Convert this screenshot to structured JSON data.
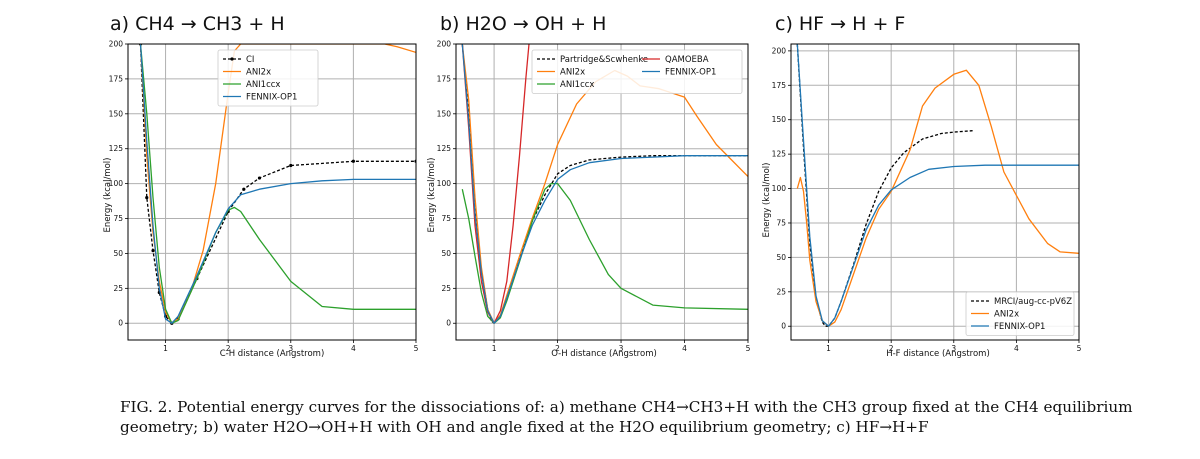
{
  "caption": {
    "label": "FIG. 2.",
    "text": "Potential energy curves for the dissociations of: a) methane CH4→CH3+H with the CH3 group fixed at the CH4 equilibrium geometry; b) water H2O→OH+H with OH and angle fixed at the H2O equilibrium geometry; c) HF→H+F"
  },
  "colors": {
    "black": "#000000",
    "orange": "#ff7f0e",
    "green": "#2ca02c",
    "blue": "#1f77b4",
    "red": "#d62728",
    "grid": "#b0b0b0"
  },
  "chart_data": [
    {
      "type": "line",
      "title": "a) CH4 → CH3 + H",
      "xlabel": "C-H distance (Angstrom)",
      "ylabel": "Energy (kcal/mol)",
      "xlim": [
        0.4,
        5.0
      ],
      "ylim": [
        -12,
        200
      ],
      "xticks": [
        1,
        2,
        3,
        4,
        5
      ],
      "yticks": [
        0,
        25,
        50,
        75,
        100,
        125,
        150,
        175,
        200
      ],
      "grid": true,
      "legend_position": "upper center",
      "series": [
        {
          "name": "CI",
          "color": "black",
          "dashed": true,
          "marker": true,
          "x": [
            0.6,
            0.7,
            0.8,
            0.9,
            1.0,
            1.1,
            1.2,
            1.5,
            2.0,
            2.25,
            2.5,
            3.0,
            4.0,
            5.0
          ],
          "y": [
            200,
            90,
            52,
            22,
            5,
            0,
            3,
            32,
            80,
            96,
            104,
            113,
            116,
            116
          ]
        },
        {
          "name": "ANI2x",
          "color": "orange",
          "x": [
            0.6,
            0.7,
            0.8,
            0.9,
            1.0,
            1.1,
            1.2,
            1.4,
            1.6,
            1.8,
            2.0,
            2.1,
            2.2,
            4.5,
            4.7,
            5.0
          ],
          "y": [
            200,
            120,
            65,
            30,
            8,
            0,
            3,
            22,
            52,
            100,
            165,
            195,
            200,
            200,
            198,
            194
          ]
        },
        {
          "name": "ANI1ccx",
          "color": "green",
          "x": [
            0.6,
            0.7,
            0.8,
            0.9,
            1.0,
            1.1,
            1.2,
            1.5,
            1.8,
            2.0,
            2.1,
            2.2,
            2.5,
            3.0,
            3.5,
            4.0,
            4.5,
            5.0
          ],
          "y": [
            200,
            150,
            90,
            40,
            10,
            0,
            2,
            32,
            65,
            81,
            83,
            80,
            60,
            30,
            12,
            10,
            10,
            10
          ]
        },
        {
          "name": "FENNIX-OP1",
          "color": "blue",
          "x": [
            0.6,
            0.7,
            0.8,
            0.9,
            1.0,
            1.1,
            1.2,
            1.5,
            1.8,
            2.0,
            2.2,
            2.5,
            3.0,
            3.5,
            4.0,
            4.5,
            5.0
          ],
          "y": [
            200,
            130,
            70,
            25,
            3,
            0,
            5,
            34,
            65,
            82,
            92,
            96,
            100,
            102,
            103,
            103,
            103
          ]
        }
      ]
    },
    {
      "type": "line",
      "title": "b) H2O → OH + H",
      "xlabel": "O-H distance (Angstrom)",
      "ylabel": "Energy (kcal/mol)",
      "xlim": [
        0.4,
        5.0
      ],
      "ylim": [
        -12,
        200
      ],
      "xticks": [
        1,
        2,
        3,
        4,
        5
      ],
      "yticks": [
        0,
        25,
        50,
        75,
        100,
        125,
        150,
        175,
        200
      ],
      "grid": true,
      "legend_position": "upper center",
      "series": [
        {
          "name": "Partridge&Scwhenke",
          "color": "black",
          "dashed": true,
          "x": [
            0.5,
            0.6,
            0.7,
            0.8,
            0.9,
            0.95,
            1.0,
            1.1,
            1.2,
            1.4,
            1.6,
            1.8,
            2.0,
            2.2,
            2.5,
            3.0,
            3.5,
            4.0,
            5.0
          ],
          "y": [
            200,
            150,
            80,
            38,
            10,
            2,
            0,
            5,
            18,
            46,
            73,
            92,
            107,
            113,
            117,
            119,
            120,
            120,
            120
          ]
        },
        {
          "name": "ANI2x",
          "color": "orange",
          "x": [
            0.5,
            0.6,
            0.7,
            0.8,
            0.9,
            1.0,
            1.1,
            1.2,
            1.4,
            1.6,
            1.8,
            2.0,
            2.3,
            2.6,
            2.9,
            3.1,
            3.3,
            3.6,
            4.0,
            4.2,
            4.5,
            5.0
          ],
          "y": [
            200,
            160,
            90,
            40,
            10,
            0,
            6,
            20,
            48,
            75,
            100,
            128,
            157,
            173,
            181,
            177,
            170,
            168,
            162,
            148,
            128,
            105
          ]
        },
        {
          "name": "ANI1ccx",
          "color": "green",
          "x": [
            0.5,
            0.6,
            0.7,
            0.8,
            0.9,
            1.0,
            1.1,
            1.2,
            1.4,
            1.6,
            1.8,
            1.9,
            2.0,
            2.2,
            2.5,
            2.8,
            3.0,
            3.5,
            4.0,
            5.0
          ],
          "y": [
            96,
            75,
            48,
            22,
            5,
            0,
            4,
            16,
            44,
            73,
            96,
            100,
            100,
            88,
            60,
            35,
            25,
            13,
            11,
            10
          ]
        },
        {
          "name": "QAMOEBA",
          "color": "red",
          "x": [
            0.5,
            0.6,
            0.7,
            0.8,
            0.9,
            1.0,
            1.1,
            1.2,
            1.3,
            1.4,
            1.5,
            1.55
          ],
          "y": [
            200,
            140,
            70,
            30,
            8,
            0,
            9,
            30,
            70,
            120,
            175,
            200
          ]
        },
        {
          "name": "FENNIX-OP1",
          "color": "blue",
          "x": [
            0.5,
            0.6,
            0.7,
            0.8,
            0.9,
            1.0,
            1.1,
            1.2,
            1.4,
            1.6,
            1.8,
            2.0,
            2.2,
            2.5,
            3.0,
            3.5,
            4.0,
            5.0
          ],
          "y": [
            200,
            145,
            78,
            36,
            9,
            0,
            5,
            18,
            45,
            70,
            88,
            103,
            110,
            115,
            118,
            119,
            120,
            120
          ]
        }
      ]
    },
    {
      "type": "line",
      "title": "c) HF → H + F",
      "xlabel": "H-F distance (Angstrom)",
      "ylabel": "Energy (kcal/mol)",
      "xlim": [
        0.4,
        5.0
      ],
      "ylim": [
        -10,
        205
      ],
      "xticks": [
        1,
        2,
        3,
        4,
        5
      ],
      "yticks": [
        0,
        25,
        50,
        75,
        100,
        125,
        150,
        175,
        200
      ],
      "grid": true,
      "legend_position": "lower right",
      "series": [
        {
          "name": "MRCI/aug-cc-pV6Z",
          "color": "black",
          "dashed": true,
          "x": [
            0.5,
            0.6,
            0.7,
            0.8,
            0.9,
            0.95,
            1.0,
            1.1,
            1.2,
            1.4,
            1.6,
            1.8,
            2.0,
            2.2,
            2.5,
            2.8,
            3.0,
            3.3
          ],
          "y": [
            205,
            130,
            60,
            20,
            3,
            0,
            0,
            6,
            18,
            45,
            74,
            98,
            115,
            126,
            136,
            140,
            141,
            142
          ]
        },
        {
          "name": "ANI2x",
          "color": "orange",
          "x": [
            0.5,
            0.55,
            0.6,
            0.65,
            0.7,
            0.8,
            0.9,
            1.0,
            1.1,
            1.2,
            1.4,
            1.6,
            1.8,
            2.0,
            2.3,
            2.5,
            2.7,
            3.0,
            3.2,
            3.4,
            3.6,
            3.8,
            4.0,
            4.2,
            4.5,
            4.7,
            5.0
          ],
          "y": [
            100,
            108,
            98,
            75,
            48,
            18,
            4,
            0,
            3,
            12,
            38,
            64,
            85,
            98,
            128,
            160,
            173,
            183,
            186,
            175,
            145,
            112,
            95,
            78,
            60,
            54,
            53
          ]
        },
        {
          "name": "FENNIX-OP1",
          "color": "blue",
          "x": [
            0.5,
            0.6,
            0.7,
            0.8,
            0.9,
            1.0,
            1.1,
            1.2,
            1.4,
            1.6,
            1.8,
            2.0,
            2.3,
            2.6,
            3.0,
            3.5,
            4.0,
            4.5,
            5.0
          ],
          "y": [
            205,
            135,
            65,
            22,
            4,
            0,
            6,
            18,
            44,
            70,
            88,
            99,
            108,
            114,
            116,
            117,
            117,
            117,
            117
          ]
        }
      ]
    }
  ]
}
